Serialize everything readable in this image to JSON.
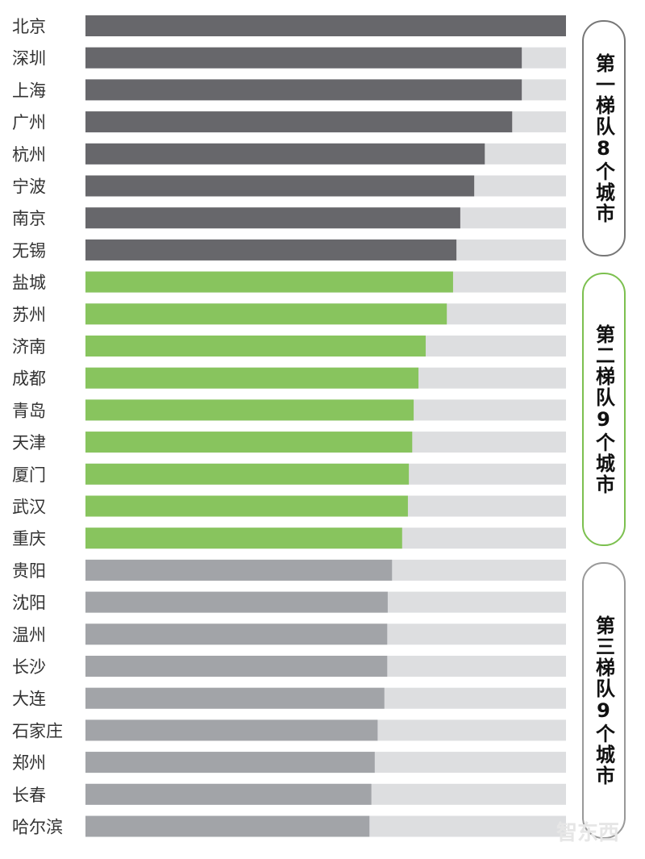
{
  "chart_data": {
    "type": "bar",
    "orientation": "horizontal",
    "categories": [
      "北京",
      "深圳",
      "上海",
      "广州",
      "杭州",
      "宁波",
      "南京",
      "无锡",
      "盐城",
      "苏州",
      "济南",
      "成都",
      "青岛",
      "天津",
      "厦门",
      "武汉",
      "重庆",
      "贵阳",
      "沈阳",
      "温州",
      "长沙",
      "大连",
      "石家庄",
      "郑州",
      "长春",
      "哈尔滨"
    ],
    "values": [
      100,
      90.8,
      90.8,
      88.8,
      83.1,
      80.9,
      78.0,
      77.2,
      76.5,
      75.2,
      70.8,
      69.3,
      68.3,
      68.0,
      67.3,
      67.1,
      65.9,
      63.8,
      62.9,
      62.8,
      62.8,
      62.2,
      60.8,
      60.2,
      59.5,
      59.1
    ],
    "tiers": [
      {
        "label": "第一梯队8个城市",
        "count": 8,
        "color": "#67676b",
        "border": "#777777"
      },
      {
        "label": "第二梯队9个城市",
        "count": 9,
        "color": "#88c45e",
        "border": "#7cc04f"
      },
      {
        "label": "第三梯队9个城市",
        "count": 9,
        "color": "#a2a4a8",
        "border": "#999999"
      }
    ],
    "track_color": "#dddee0",
    "xlim": [
      0,
      100
    ],
    "grid": false,
    "legend": "none"
  },
  "watermark": "智东西"
}
